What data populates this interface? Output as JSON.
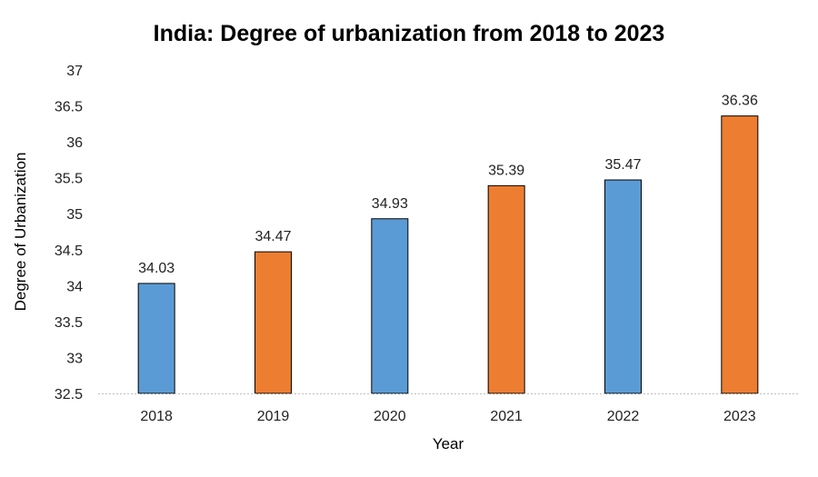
{
  "chart_data": {
    "type": "bar",
    "title": "India: Degree of urbanization from 2018 to 2023",
    "xlabel": "Year",
    "ylabel": "Degree of Urbanization",
    "categories": [
      "2018",
      "2019",
      "2020",
      "2021",
      "2022",
      "2023"
    ],
    "values": [
      34.03,
      34.47,
      34.93,
      35.39,
      35.47,
      36.36
    ],
    "value_labels": [
      "34.03",
      "34.47",
      "34.93",
      "35.39",
      "35.47",
      "36.36"
    ],
    "ylim": [
      32.5,
      37
    ],
    "yticks": [
      32.5,
      33,
      33.5,
      34,
      34.5,
      35,
      35.5,
      36,
      36.5,
      37
    ],
    "ytick_labels": [
      "32.5",
      "33",
      "33.5",
      "34",
      "34.5",
      "35",
      "35.5",
      "36",
      "36.5",
      "37"
    ],
    "grid": false,
    "legend": "none",
    "bar_colors": [
      "#5B9BD5",
      "#ED7D31",
      "#5B9BD5",
      "#ED7D31",
      "#5B9BD5",
      "#ED7D31"
    ],
    "bar_outline": "#000000"
  }
}
